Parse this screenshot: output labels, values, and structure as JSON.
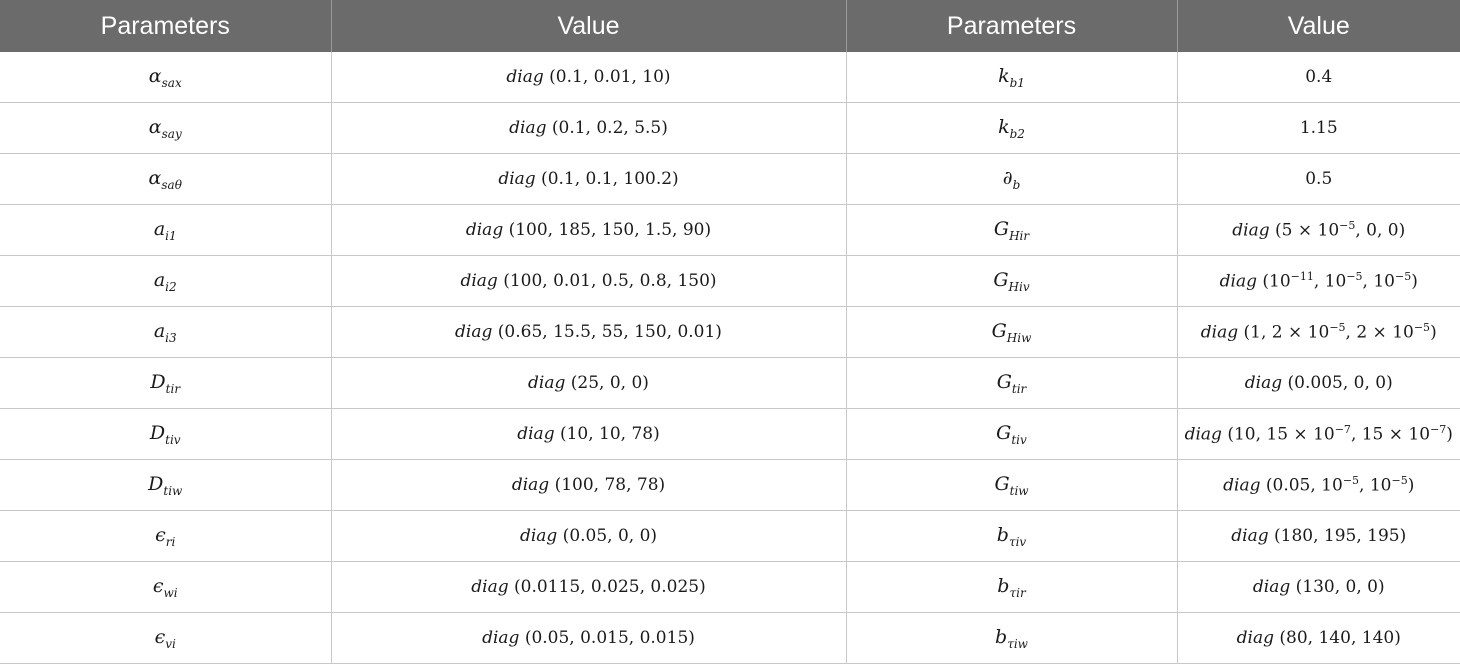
{
  "table": {
    "headers": [
      "Parameters",
      "Value",
      "Parameters",
      "Value"
    ],
    "rows": [
      {
        "p1": {
          "base": "α",
          "sub": "sax"
        },
        "v1": "diag (0.1,    0.01,    10)",
        "p2": {
          "base": "k",
          "sub": "b1"
        },
        "v2": "0.4"
      },
      {
        "p1": {
          "base": "α",
          "sub": "say"
        },
        "v1": "diag (0.1,    0.2,    5.5)",
        "p2": {
          "base": "k",
          "sub": "b2"
        },
        "v2": "1.15"
      },
      {
        "p1": {
          "base": "α",
          "sub": "saθ"
        },
        "v1": "diag (0.1,    0.1,    100.2)",
        "p2": {
          "base": "∂",
          "sub": "b"
        },
        "v2": "0.5"
      },
      {
        "p1": {
          "base": "a",
          "sub": "i1"
        },
        "v1": "diag (100,    185,    150,    1.5,    90)",
        "p2": {
          "base": "G",
          "sub": "Hir"
        },
        "v2": "diag (5 × 10^{−5}, 0, 0)"
      },
      {
        "p1": {
          "base": "a",
          "sub": "i2"
        },
        "v1": "diag (100,    0.01,    0.5,    0.8,    150)",
        "p2": {
          "base": "G",
          "sub": "Hiv"
        },
        "v2": "diag (10^{−11}, 10^{−5}, 10^{−5})"
      },
      {
        "p1": {
          "base": "a",
          "sub": "i3"
        },
        "v1": "diag (0.65,  15.5,    55,    150,    0.01)",
        "p2": {
          "base": "G",
          "sub": "Hiw"
        },
        "v2": "diag (1, 2 × 10^{−5}, 2 × 10^{−5})"
      },
      {
        "p1": {
          "base": "D",
          "sub": "tir"
        },
        "v1": "diag (25,  0,  0)",
        "p2": {
          "base": "G",
          "sub": "tir"
        },
        "v2": "diag (0.005, 0, 0)"
      },
      {
        "p1": {
          "base": "D",
          "sub": "tiv"
        },
        "v1": "diag (10,  10,  78)",
        "p2": {
          "base": "G",
          "sub": "tiv"
        },
        "v2": "diag (10, 15 × 10^{−7}, 15 × 10^{−7})"
      },
      {
        "p1": {
          "base": "D",
          "sub": "tiw"
        },
        "v1": "diag (100, 78, 78)",
        "p2": {
          "base": "G",
          "sub": "tiw"
        },
        "v2": "diag (0.05, 10^{−5}, 10^{−5})"
      },
      {
        "p1": {
          "base": "ϵ",
          "sub": "ri"
        },
        "v1": "diag (0.05,  0,  0)",
        "p2": {
          "base": "b",
          "sub": "τiv"
        },
        "v2": "diag (180, 195, 195)"
      },
      {
        "p1": {
          "base": "ϵ",
          "sub": "wi"
        },
        "v1": "diag (0.0115,    0.025,    0.025)",
        "p2": {
          "base": "b",
          "sub": "τir"
        },
        "v2": "diag (130, 0, 0)"
      },
      {
        "p1": {
          "base": "ϵ",
          "sub": "vi"
        },
        "v1": "diag (0.05,    0.015,    0.015)",
        "p2": {
          "base": "b",
          "sub": "τiw"
        },
        "v2": "diag (80, 140, 140)"
      }
    ]
  }
}
